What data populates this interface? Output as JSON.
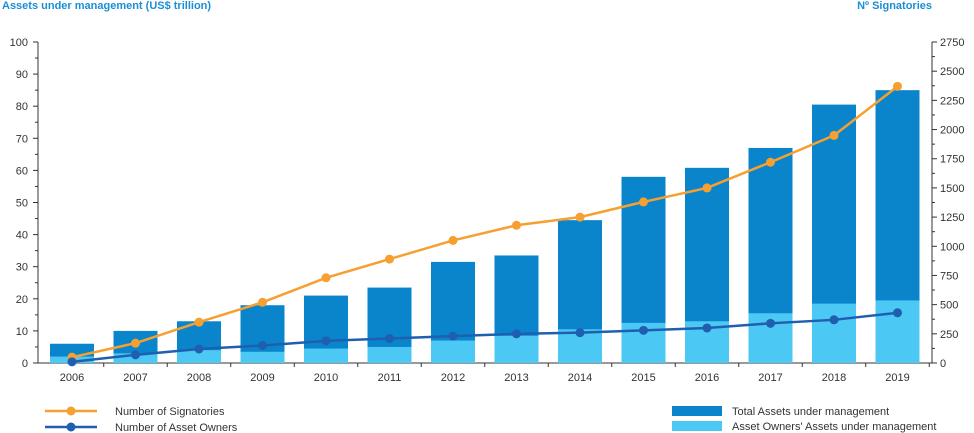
{
  "left_axis_title": "Assets under management (US$ trillion)",
  "right_axis_title": "Nº Signatories",
  "colors": {
    "total_aum": "#0a85cc",
    "owners_aum": "#4cc8f4",
    "signatories": "#f5a030",
    "asset_owners": "#1f5fb0",
    "axis": "#333333"
  },
  "chart_data": {
    "type": "bar",
    "categories": [
      "2006",
      "2007",
      "2008",
      "2009",
      "2010",
      "2011",
      "2012",
      "2013",
      "2014",
      "2015",
      "2016",
      "2017",
      "2018",
      "2019"
    ],
    "left_ylim": [
      0,
      100
    ],
    "left_ticks": [
      0,
      10,
      20,
      30,
      40,
      50,
      60,
      70,
      80,
      90,
      100
    ],
    "right_ylim": [
      0,
      2750
    ],
    "right_ticks": [
      0,
      250,
      500,
      750,
      1000,
      1250,
      1500,
      1750,
      2000,
      2250,
      2500,
      2750
    ],
    "series": [
      {
        "name": "Total Assets under management",
        "axis": "left",
        "kind": "bar",
        "values": [
          6,
          10,
          13,
          18,
          21,
          23.5,
          31.5,
          33.5,
          44.5,
          58,
          60.8,
          67,
          80.5,
          85
        ]
      },
      {
        "name": "Asset Owners' Assets under management",
        "axis": "left",
        "kind": "bar",
        "values": [
          2,
          3,
          4,
          3.5,
          4.5,
          5,
          7,
          8.5,
          10.5,
          12.5,
          13,
          15.5,
          18.5,
          19.5
        ]
      },
      {
        "name": "Number of Signatories",
        "axis": "right",
        "kind": "line",
        "values": [
          50,
          170,
          350,
          520,
          730,
          890,
          1050,
          1180,
          1250,
          1380,
          1500,
          1720,
          1950,
          2370
        ]
      },
      {
        "name": "Number of Asset Owners",
        "axis": "right",
        "kind": "line",
        "values": [
          10,
          70,
          120,
          150,
          190,
          210,
          230,
          250,
          260,
          280,
          300,
          340,
          370,
          430
        ]
      }
    ],
    "legend_position": "bottom"
  }
}
